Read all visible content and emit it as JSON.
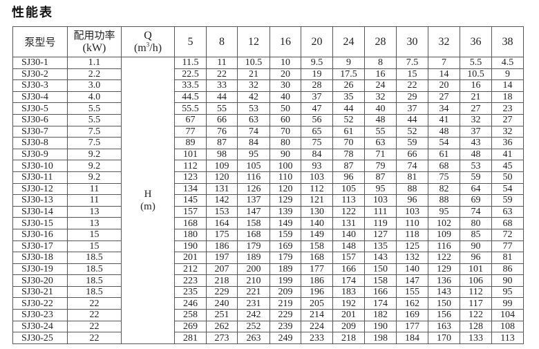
{
  "title": "性能表",
  "header": {
    "model": "泵型号",
    "power_cn": "配用功率",
    "power_unit": "(kW)",
    "q_label": "Q",
    "q_unit_prefix": "(m",
    "q_unit_sup": "3",
    "q_unit_suffix": "/h)",
    "flows": [
      "5",
      "8",
      "12",
      "16",
      "20",
      "24",
      "28",
      "30",
      "32",
      "36",
      "38"
    ]
  },
  "h_label": "H",
  "h_unit": "(m)",
  "rows": [
    {
      "model": "SJ30-1",
      "power": "1.1",
      "h": [
        "11.5",
        "11",
        "10.5",
        "10",
        "9.5",
        "9",
        "8",
        "7.5",
        "7",
        "5.5",
        "4.5"
      ]
    },
    {
      "model": "SJ30-2",
      "power": "2.2",
      "h": [
        "22.5",
        "22",
        "21",
        "20",
        "19",
        "17.5",
        "16",
        "15",
        "14",
        "10.5",
        "9"
      ]
    },
    {
      "model": "SJ30-3",
      "power": "3.0",
      "h": [
        "33.5",
        "33",
        "32",
        "30",
        "28",
        "26",
        "24",
        "22",
        "20",
        "16",
        "14"
      ]
    },
    {
      "model": "SJ30-4",
      "power": "4.0",
      "h": [
        "44.5",
        "44",
        "42",
        "40",
        "37",
        "35",
        "32",
        "29",
        "27",
        "21",
        "18"
      ]
    },
    {
      "model": "SJ30-5",
      "power": "5.5",
      "h": [
        "55.5",
        "55",
        "53",
        "50",
        "47",
        "44",
        "40",
        "37",
        "34",
        "27",
        "23"
      ]
    },
    {
      "model": "SJ30-6",
      "power": "5.5",
      "h": [
        "67",
        "66",
        "63",
        "60",
        "56",
        "52",
        "48",
        "44",
        "41",
        "32",
        "27"
      ]
    },
    {
      "model": "SJ30-7",
      "power": "7.5",
      "h": [
        "77",
        "76",
        "74",
        "70",
        "65",
        "61",
        "55",
        "52",
        "48",
        "37",
        "32"
      ]
    },
    {
      "model": "SJ30-8",
      "power": "7.5",
      "h": [
        "89",
        "87",
        "84",
        "80",
        "75",
        "70",
        "63",
        "59",
        "54",
        "43",
        "36"
      ]
    },
    {
      "model": "SJ30-9",
      "power": "9.2",
      "h": [
        "101",
        "98",
        "95",
        "90",
        "84",
        "78",
        "71",
        "66",
        "61",
        "48",
        "41"
      ]
    },
    {
      "model": "SJ30-10",
      "power": "9.2",
      "h": [
        "112",
        "109",
        "105",
        "100",
        "93",
        "87",
        "79",
        "74",
        "68",
        "53",
        "45"
      ]
    },
    {
      "model": "SJ30-11",
      "power": "9.2",
      "h": [
        "123",
        "120",
        "116",
        "110",
        "103",
        "96",
        "87",
        "81",
        "75",
        "59",
        "50"
      ]
    },
    {
      "model": "SJ30-12",
      "power": "11",
      "h": [
        "134",
        "131",
        "126",
        "120",
        "112",
        "105",
        "95",
        "88",
        "82",
        "64",
        "54"
      ]
    },
    {
      "model": "SJ30-13",
      "power": "11",
      "h": [
        "145",
        "142",
        "137",
        "129",
        "121",
        "113",
        "103",
        "96",
        "88",
        "69",
        "59"
      ]
    },
    {
      "model": "SJ30-14",
      "power": "13",
      "h": [
        "157",
        "153",
        "147",
        "139",
        "130",
        "122",
        "111",
        "103",
        "95",
        "74",
        "63"
      ]
    },
    {
      "model": "SJ30-15",
      "power": "13",
      "h": [
        "168",
        "164",
        "158",
        "149",
        "140",
        "131",
        "119",
        "110",
        "102",
        "80",
        "68"
      ]
    },
    {
      "model": "SJ30-16",
      "power": "15",
      "h": [
        "180",
        "175",
        "168",
        "159",
        "149",
        "140",
        "127",
        "118",
        "109",
        "85",
        "72"
      ]
    },
    {
      "model": "SJ30-17",
      "power": "15",
      "h": [
        "190",
        "186",
        "179",
        "169",
        "158",
        "148",
        "135",
        "125",
        "116",
        "90",
        "77"
      ]
    },
    {
      "model": "SJ30-18",
      "power": "18.5",
      "h": [
        "201",
        "197",
        "189",
        "179",
        "168",
        "157",
        "143",
        "132",
        "122",
        "96",
        "81"
      ]
    },
    {
      "model": "SJ30-19",
      "power": "18.5",
      "h": [
        "212",
        "207",
        "200",
        "189",
        "177",
        "166",
        "150",
        "140",
        "129",
        "101",
        "86"
      ]
    },
    {
      "model": "SJ30-20",
      "power": "18.5",
      "h": [
        "223",
        "218",
        "210",
        "199",
        "186",
        "174",
        "158",
        "147",
        "136",
        "106",
        "90"
      ]
    },
    {
      "model": "SJ30-21",
      "power": "18.5",
      "h": [
        "235",
        "229",
        "221",
        "209",
        "196",
        "183",
        "166",
        "155",
        "143",
        "112",
        "95"
      ]
    },
    {
      "model": "SJ30-22",
      "power": "22",
      "h": [
        "246",
        "240",
        "231",
        "219",
        "205",
        "192",
        "174",
        "162",
        "150",
        "117",
        "99"
      ]
    },
    {
      "model": "SJ30-23",
      "power": "22",
      "h": [
        "258",
        "251",
        "242",
        "229",
        "214",
        "201",
        "182",
        "169",
        "156",
        "122",
        "104"
      ]
    },
    {
      "model": "SJ30-24",
      "power": "22",
      "h": [
        "269",
        "262",
        "252",
        "239",
        "224",
        "209",
        "190",
        "177",
        "163",
        "128",
        "108"
      ]
    },
    {
      "model": "SJ30-25",
      "power": "22",
      "h": [
        "281",
        "273",
        "263",
        "249",
        "233",
        "218",
        "198",
        "184",
        "170",
        "133",
        "113"
      ]
    }
  ]
}
